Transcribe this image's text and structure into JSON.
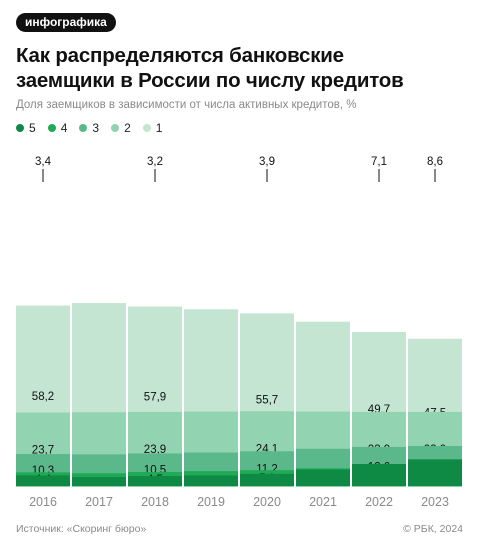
{
  "tag": "инфографика",
  "title_lines": [
    "Как распределяются банковские",
    "заемщики в России по числу кредитов"
  ],
  "subtitle": "Доля заемщиков в зависимости от числа активных кредитов, %",
  "legend": [
    {
      "label": "5",
      "color": "#0e8a45"
    },
    {
      "label": "4",
      "color": "#1faa55"
    },
    {
      "label": "3",
      "color": "#5ab88a"
    },
    {
      "label": "2",
      "color": "#92d3b1"
    },
    {
      "label": "1",
      "color": "#c3e5d2"
    }
  ],
  "source": "Источник: «Скоринг бюро»",
  "copyright": "© РБК, 2024",
  "chart_data": {
    "type": "bar",
    "stacked": true,
    "categories": [
      "2016",
      "2017",
      "2018",
      "2019",
      "2020",
      "2021",
      "2022",
      "2023"
    ],
    "ylim": [
      0,
      100
    ],
    "series": [
      {
        "name": "1",
        "color": "#c3e5d2",
        "values": [
          58.2,
          59.0,
          57.9,
          57.0,
          55.7,
          53.0,
          49.7,
          47.5
        ],
        "labels": [
          "58,2",
          "",
          "57,9",
          "",
          "55,7",
          "",
          "49,7",
          "47,5"
        ]
      },
      {
        "name": "2",
        "color": "#92d3b1",
        "values": [
          23.7,
          23.8,
          23.9,
          24.0,
          24.1,
          24.0,
          23.9,
          23.9
        ],
        "labels": [
          "23,7",
          "",
          "23,9",
          "",
          "24,1",
          "",
          "23,9",
          "23,9"
        ]
      },
      {
        "name": "3",
        "color": "#5ab88a",
        "values": [
          10.3,
          10.2,
          10.5,
          10.8,
          11.2,
          12.0,
          12.6,
          12.9
        ],
        "labels": [
          "10,3",
          "",
          "10,5",
          "",
          "11,2",
          "",
          "12,6",
          "12,9"
        ]
      },
      {
        "name": "4",
        "color": "#1faa55",
        "values": [
          4.4,
          4.1,
          4.5,
          4.8,
          5.1,
          5.7,
          6.7,
          7.1
        ],
        "labels": [
          "4,4",
          "",
          "4,5",
          "",
          "5,1",
          "",
          "6,7",
          "7,1"
        ]
      },
      {
        "name": "5",
        "color": "#0e8a45",
        "values": [
          3.4,
          2.9,
          3.2,
          3.4,
          3.9,
          5.3,
          7.1,
          8.6
        ],
        "labels": [
          "3,4",
          "",
          "3,2",
          "",
          "3,9",
          "",
          "7,1",
          "8,6"
        ]
      }
    ]
  }
}
